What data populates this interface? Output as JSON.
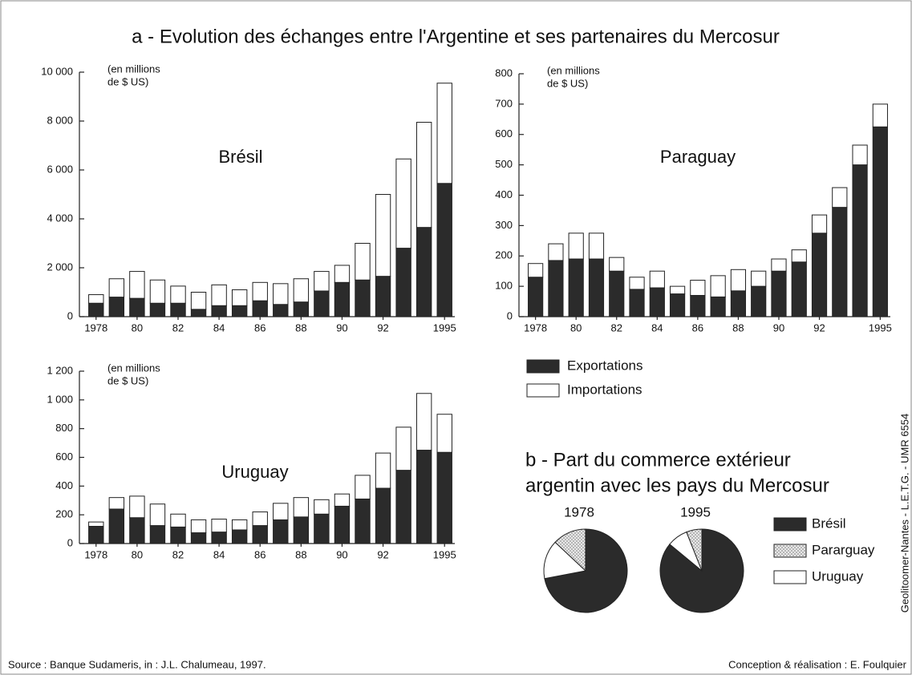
{
  "title": "a - Evolution des échanges entre l'Argentine et ses partenaires du Mercosur",
  "source": "Source : Banque Sudameris, in : J.L. Chalumeau, 1997.",
  "credit": "Conception & réalisation : E. Foulquier",
  "side_credit": "Geolitoomer-Nantes - L.E.T.G. - UMR 6554",
  "chart_data": [
    {
      "type": "bar",
      "stacked": true,
      "annotation": "Brésil",
      "unit": [
        "(en millions",
        "de $ US)"
      ],
      "categories": [
        "1978",
        null,
        "80",
        null,
        "82",
        null,
        "84",
        null,
        "86",
        null,
        "88",
        null,
        "90",
        null,
        "92",
        null,
        null,
        "1995"
      ],
      "ylim": [
        0,
        10000
      ],
      "yticks": [
        0,
        {
          "value": 2000,
          "label": "2 000"
        },
        {
          "value": 4000,
          "label": "4 000"
        },
        {
          "value": 6000,
          "label": "6 000"
        },
        {
          "value": 8000,
          "label": "8 000"
        },
        {
          "value": 10000,
          "label": "10 000"
        }
      ],
      "series": [
        {
          "name": "Exportations",
          "color": "#2b2b2b",
          "values": [
            550,
            800,
            750,
            550,
            550,
            300,
            450,
            450,
            650,
            500,
            600,
            1050,
            1400,
            1500,
            1650,
            2800,
            3650,
            5450
          ]
        },
        {
          "name": "Importations",
          "color": "#ffffff",
          "values": [
            350,
            750,
            1100,
            950,
            700,
            700,
            850,
            650,
            750,
            850,
            950,
            800,
            700,
            1500,
            3350,
            3650,
            4300,
            4100
          ]
        }
      ]
    },
    {
      "type": "bar",
      "stacked": true,
      "annotation": "Paraguay",
      "unit": [
        "(en millions",
        "de $ US)"
      ],
      "categories": [
        "1978",
        null,
        "80",
        null,
        "82",
        null,
        "84",
        null,
        "86",
        null,
        "88",
        null,
        "90",
        null,
        "92",
        null,
        null,
        "1995"
      ],
      "ylim": [
        0,
        800
      ],
      "yticks": [
        0,
        100,
        200,
        300,
        400,
        500,
        600,
        700,
        800
      ],
      "series": [
        {
          "color": "#2b2b2b",
          "values": [
            130,
            185,
            190,
            190,
            150,
            90,
            95,
            75,
            70,
            65,
            85,
            100,
            150,
            180,
            275,
            360,
            500,
            625
          ]
        },
        {
          "color": "#ffffff",
          "values": [
            45,
            55,
            85,
            85,
            45,
            40,
            55,
            25,
            50,
            70,
            70,
            50,
            40,
            40,
            60,
            65,
            65,
            75
          ]
        }
      ]
    },
    {
      "type": "bar",
      "stacked": true,
      "annotation": "Uruguay",
      "unit": [
        "(en millions",
        "de $ US)"
      ],
      "categories": [
        "1978",
        null,
        "80",
        null,
        "82",
        null,
        "84",
        null,
        "86",
        null,
        "88",
        null,
        "90",
        null,
        "92",
        null,
        null,
        "1995"
      ],
      "ylim": [
        0,
        1200
      ],
      "yticks": [
        0,
        200,
        400,
        600,
        800,
        {
          "value": 1000,
          "label": "1 000"
        },
        {
          "value": 1200,
          "label": "1 200"
        }
      ],
      "series": [
        {
          "color": "#2b2b2b",
          "values": [
            120,
            240,
            180,
            125,
            115,
            75,
            80,
            95,
            125,
            165,
            185,
            205,
            260,
            310,
            385,
            510,
            650,
            635
          ]
        },
        {
          "color": "#ffffff",
          "values": [
            30,
            80,
            150,
            150,
            90,
            90,
            90,
            70,
            95,
            115,
            135,
            100,
            85,
            165,
            245,
            300,
            395,
            265
          ]
        }
      ]
    },
    {
      "type": "pie",
      "title": [
        "b - Part du commerce extérieur",
        "argentin avec les pays du Mercosur"
      ],
      "categories": [
        "Brésil",
        "Pararguay",
        "Uruguay"
      ],
      "colors": [
        "#2b2b2b",
        "#d9d9d9",
        "#ffffff"
      ],
      "series": [
        {
          "name": "1978",
          "values": [
            72,
            13,
            15
          ]
        },
        {
          "name": "1995",
          "values": [
            86,
            6,
            8
          ]
        }
      ]
    }
  ]
}
